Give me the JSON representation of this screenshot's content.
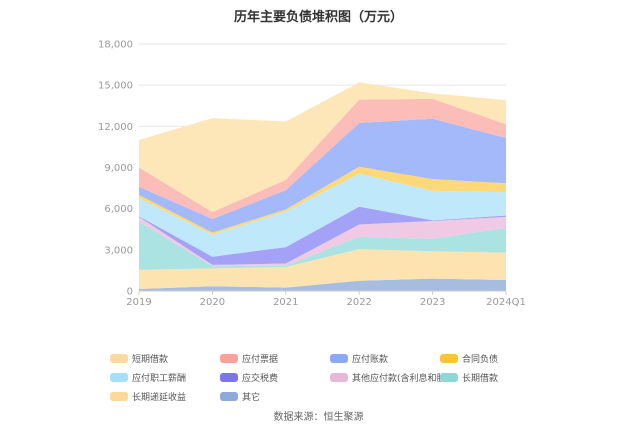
{
  "chart_data": {
    "type": "area",
    "stacked": true,
    "title": "历年主要负债堆积图（万元）",
    "categories": [
      "2019",
      "2020",
      "2021",
      "2022",
      "2023",
      "2024Q1"
    ],
    "yticks": [
      "0",
      "3,000",
      "6,000",
      "9,000",
      "12,000",
      "15,000",
      "18,000"
    ],
    "ylim": [
      0,
      18000
    ],
    "legend_position": "bottom",
    "series": [
      {
        "name": "其它",
        "color": "#a6bde0",
        "values": [
          150,
          350,
          250,
          750,
          900,
          800
        ]
      },
      {
        "name": "长期递延收益",
        "color": "#fde3b0",
        "values": [
          1400,
          1300,
          1500,
          2300,
          2000,
          2000
        ]
      },
      {
        "name": "长期借款",
        "color": "#abe2e2",
        "values": [
          3500,
          150,
          100,
          900,
          900,
          1800
        ]
      },
      {
        "name": "其他应付款(含利息和股利)",
        "color": "#f0c9e4",
        "values": [
          350,
          100,
          150,
          900,
          1300,
          800
        ]
      },
      {
        "name": "应交税费",
        "color": "#a3a2f6",
        "values": [
          50,
          600,
          1200,
          1300,
          50,
          100
        ]
      },
      {
        "name": "应付职工薪酬",
        "color": "#c0e8fb",
        "values": [
          1300,
          1600,
          2600,
          2400,
          2150,
          1700
        ]
      },
      {
        "name": "合同负债",
        "color": "#ffd978",
        "values": [
          250,
          150,
          150,
          500,
          850,
          650
        ]
      },
      {
        "name": "应付账款",
        "color": "#a4b9fa",
        "values": [
          600,
          1000,
          1400,
          3200,
          4400,
          3300
        ]
      },
      {
        "name": "应付票据",
        "color": "#fcbcb8",
        "values": [
          1400,
          500,
          750,
          1700,
          1450,
          1000
        ]
      },
      {
        "name": "短期借款",
        "color": "#fde6b8",
        "values": [
          2000,
          6850,
          4250,
          1250,
          400,
          1750
        ]
      }
    ],
    "legend_order": [
      "短期借款",
      "应付票据",
      "应付账款",
      "合同负债",
      "应付职工薪酬",
      "应交税费",
      "其他应付款(含利息和股利)",
      "长期借款",
      "长期递延收益",
      "其它"
    ]
  },
  "legend_colors": {
    "短期借款": "#fdd9a0",
    "应付票据": "#f9a29c",
    "应付账款": "#8da8f7",
    "合同负债": "#fcc332",
    "应付职工薪酬": "#a9def8",
    "应交税费": "#7b76f0",
    "其他应付款(含利息和股利)": "#e8b8d9",
    "长期借款": "#8fd7d7",
    "长期递延收益": "#fdd89a",
    "其它": "#8eaad8"
  },
  "source": "数据来源：恒生聚源"
}
